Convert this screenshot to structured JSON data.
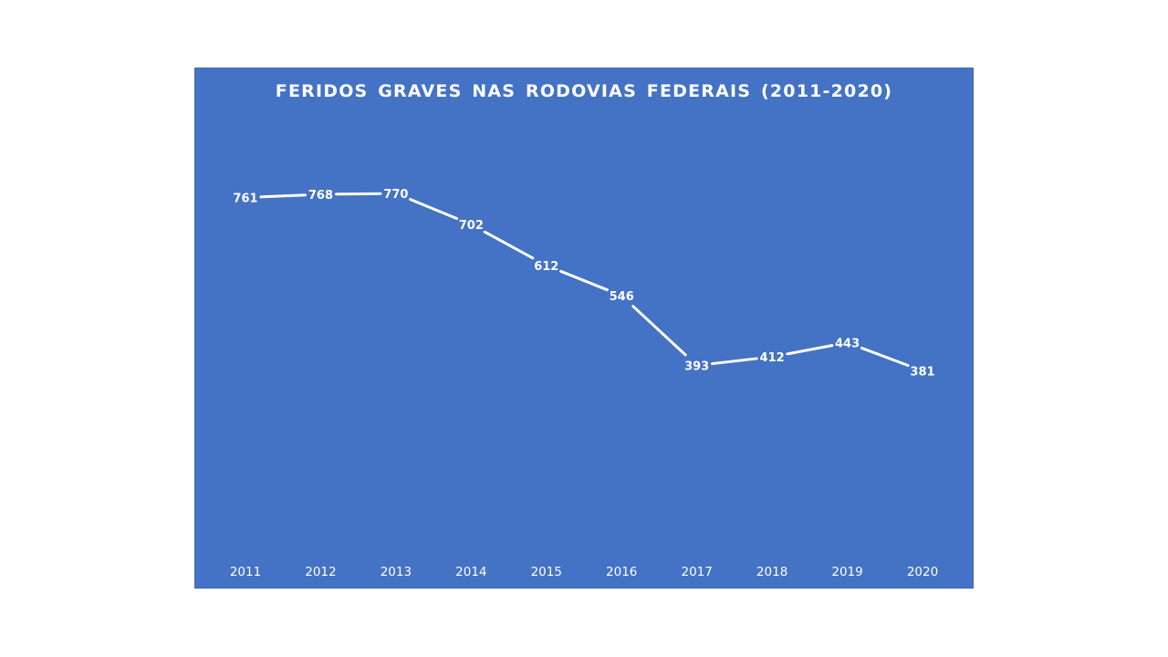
{
  "chart_data": {
    "type": "line",
    "title": "FERIDOS GRAVES NAS RODOVIAS FEDERAIS (2011-2020)",
    "xlabel": "",
    "ylabel": "",
    "categories": [
      "2011",
      "2012",
      "2013",
      "2014",
      "2015",
      "2016",
      "2017",
      "2018",
      "2019",
      "2020"
    ],
    "series": [
      {
        "values": [
          761,
          768,
          770,
          702,
          612,
          546,
          393,
          412,
          443,
          381
        ]
      }
    ],
    "ylim": [
      0,
      900
    ],
    "y_axis_visible": false,
    "grid": false,
    "drop_lines": true,
    "data_labels": true,
    "legend": "none",
    "colors": {
      "background": "#4472c4",
      "line": "#ffffff",
      "text": "#ffffff"
    }
  }
}
